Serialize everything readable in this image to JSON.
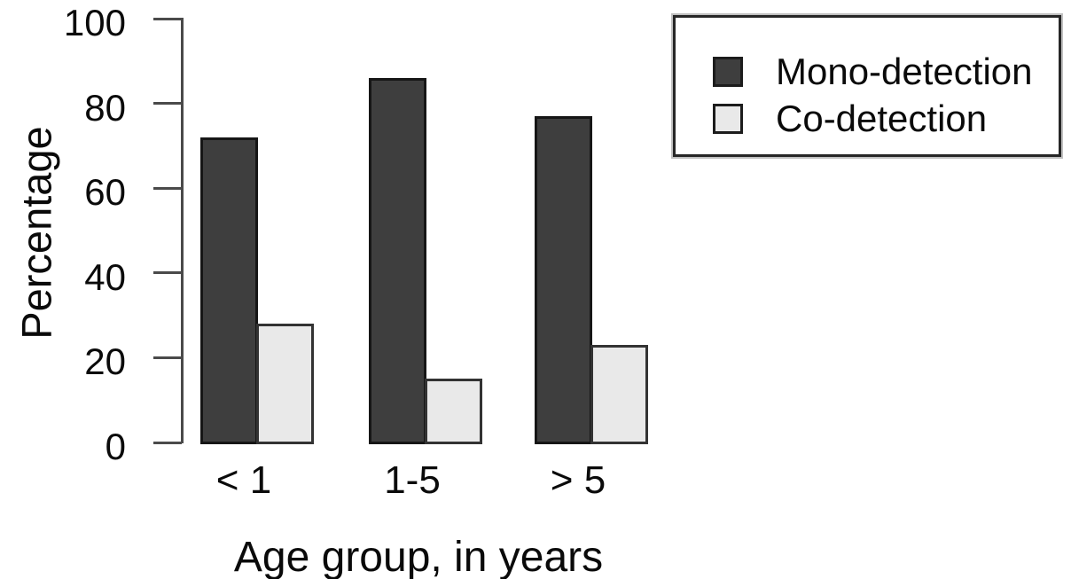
{
  "figure": {
    "background": "#ffffff",
    "axis_color": "#4a4a4a",
    "text_color": "#0a0a0a"
  },
  "chart_data": {
    "type": "bar",
    "title": "",
    "xlabel": "Age group, in years",
    "ylabel": "Percentage",
    "categories": [
      "< 1",
      "1-5",
      "> 5"
    ],
    "series": [
      {
        "name": "Mono-detection",
        "values": [
          72,
          86,
          77
        ],
        "color": "#3e3e3e",
        "border": "#161616"
      },
      {
        "name": "Co-detection",
        "values": [
          28,
          15,
          23
        ],
        "color": "#e9e9e9",
        "border": "#333333"
      }
    ],
    "ylim": [
      0,
      100
    ],
    "yticks": [
      "0",
      "20",
      "40",
      "60",
      "80",
      "100"
    ],
    "grid": false,
    "legend_position": "top-right"
  }
}
